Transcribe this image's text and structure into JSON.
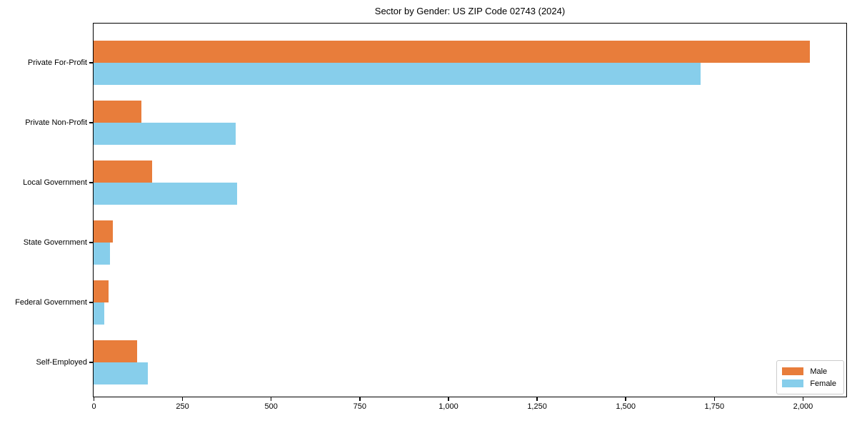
{
  "chart_data": {
    "type": "bar",
    "orientation": "horizontal",
    "title": "Sector by Gender: US ZIP Code 02743 (2024)",
    "categories": [
      "Private For-Profit",
      "Private Non-Profit",
      "Local Government",
      "State Government",
      "Federal Government",
      "Self-Employed"
    ],
    "series": [
      {
        "name": "Male",
        "color": "#e87d3b",
        "values": [
          2020,
          134,
          165,
          54,
          42,
          123
        ]
      },
      {
        "name": "Female",
        "color": "#87ceeb",
        "values": [
          1712,
          400,
          404,
          47,
          31,
          153
        ]
      }
    ],
    "xlim": [
      0,
      2121
    ],
    "xticks": [
      0,
      250,
      500,
      750,
      1000,
      1250,
      1500,
      1750,
      2000
    ],
    "xtick_labels": [
      "0",
      "250",
      "500",
      "750",
      "1,000",
      "1,250",
      "1,500",
      "1,750",
      "2,000"
    ],
    "xlabel": "",
    "ylabel": "",
    "grid": false,
    "legend_position": "lower right",
    "spine_color": "#000000",
    "background_color": "#ffffff"
  }
}
